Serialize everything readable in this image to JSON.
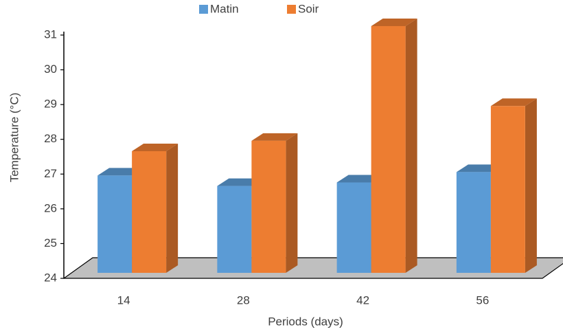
{
  "chart_data": {
    "type": "bar3d",
    "x_label": "Periods (days)",
    "y_label": "Temperature (°C)",
    "categories": [
      "14",
      "28",
      "42",
      "56"
    ],
    "series": [
      {
        "name": "Matin",
        "color": "#5b9bd5",
        "values": [
          26.8,
          26.5,
          26.6,
          26.9
        ]
      },
      {
        "name": "Soir",
        "color": "#ed7d31",
        "values": [
          27.5,
          27.8,
          31.1,
          28.8
        ]
      }
    ],
    "ylim": [
      24,
      31
    ],
    "yticks": [
      24,
      25,
      26,
      27,
      28,
      29,
      30,
      31
    ],
    "legend": "top"
  }
}
